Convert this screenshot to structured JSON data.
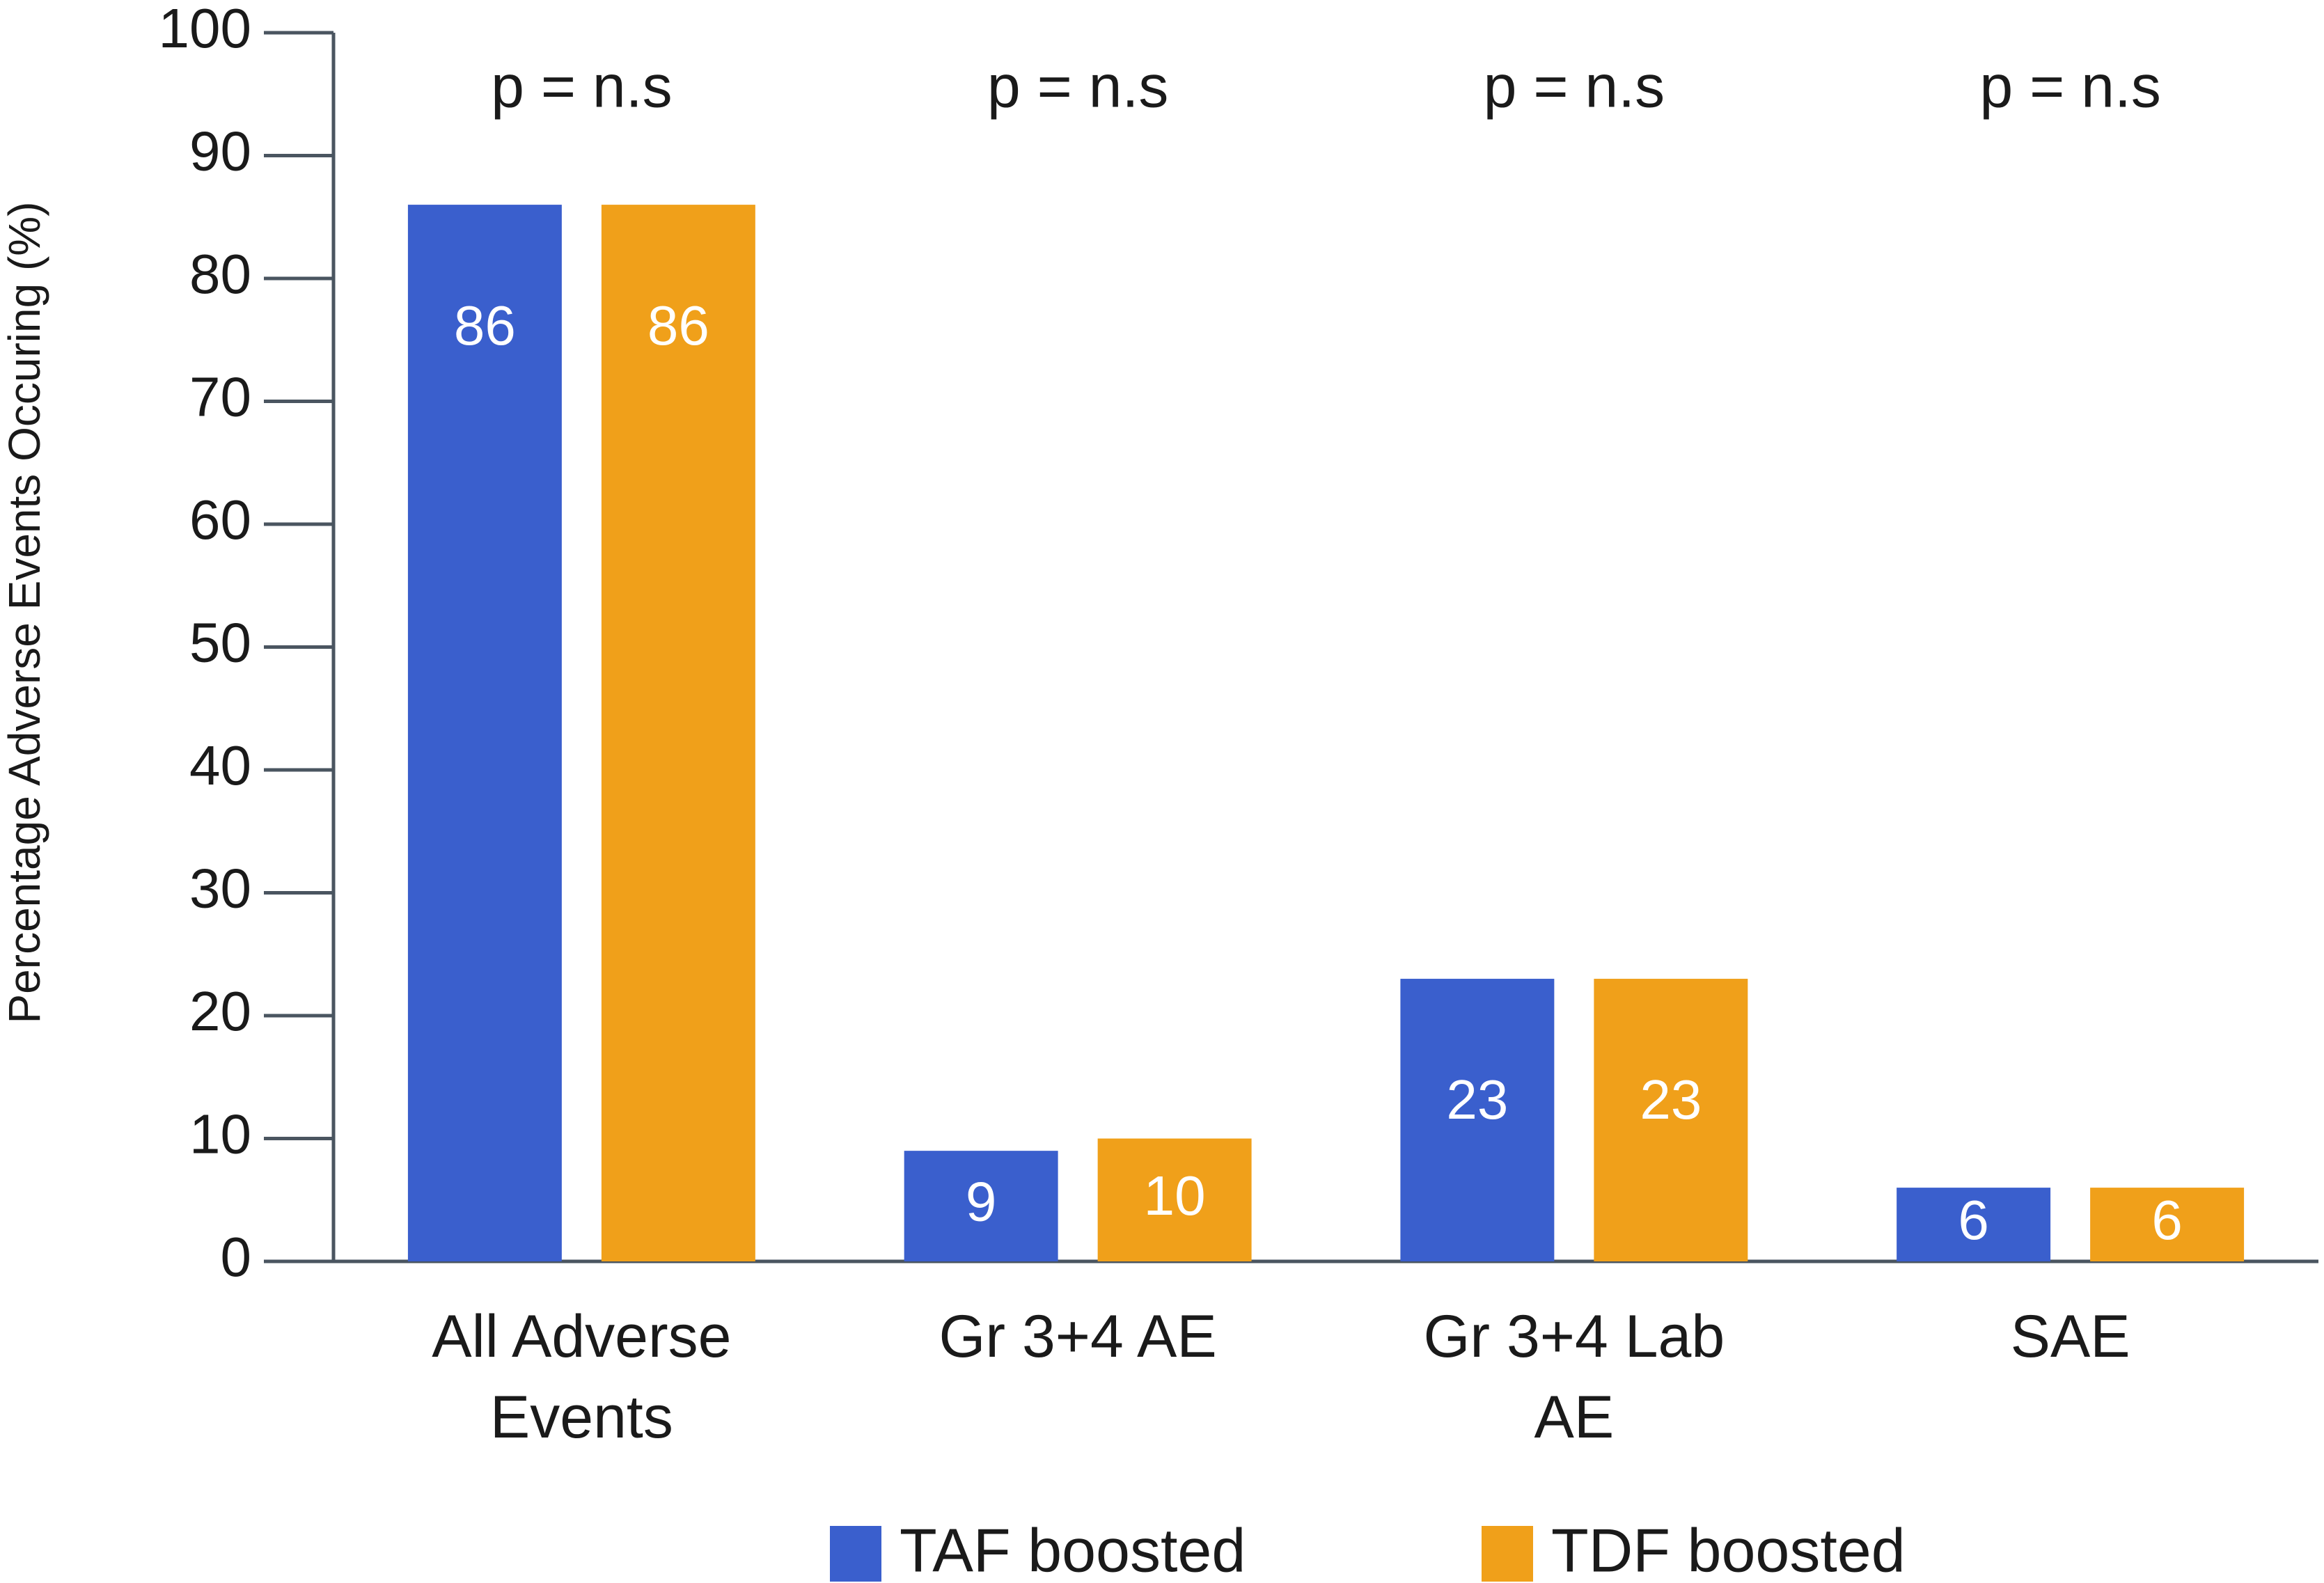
{
  "chart_data": {
    "type": "bar",
    "y_label": "Percentage Adverse Events Occuring (%)",
    "categories": [
      "All Adverse Events",
      "Gr 3+4 AE",
      "Gr 3+4 Lab AE",
      "SAE"
    ],
    "annotations": [
      "p = n.s",
      "p = n.s",
      "p = n.s",
      "p = n.s"
    ],
    "series": [
      {
        "name": "TAF boosted",
        "color": "#3a5fcd",
        "values": [
          86,
          9,
          23,
          6
        ]
      },
      {
        "name": "TDF boosted",
        "color": "#f0a01a",
        "values": [
          86,
          10,
          23,
          6
        ]
      }
    ],
    "ylim": [
      0,
      100
    ],
    "yticks": [
      0,
      10,
      20,
      30,
      40,
      50,
      60,
      70,
      80,
      90,
      100
    ],
    "legend": "bottom"
  }
}
